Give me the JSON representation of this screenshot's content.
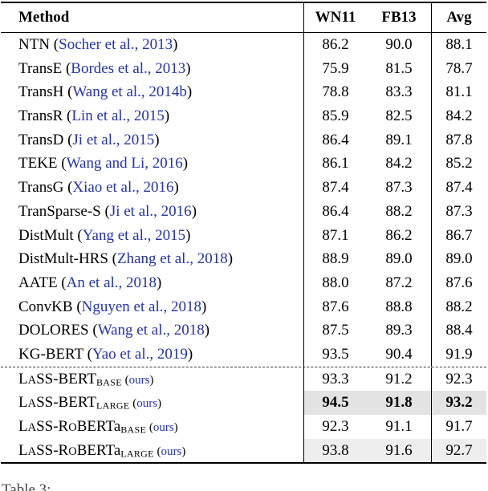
{
  "page": {
    "background": "#ffffff"
  },
  "colors": {
    "link_blue": "#2433aa",
    "highlight_dark": "#e3e3e3",
    "highlight_light": "#eeeeee",
    "rule_black": "#000000"
  },
  "caption": {
    "fragment": "Table 3:"
  },
  "table": {
    "headers": {
      "method": "Method",
      "wn11": "WN11",
      "fb13": "FB13",
      "avg": "Avg"
    },
    "rows": [
      {
        "parts": [
          {
            "t": "NTN ("
          },
          {
            "t": "Socher et al., 2013",
            "s": "link"
          },
          {
            "t": ")"
          }
        ],
        "values": [
          "86.2",
          "90.0",
          "88.1"
        ],
        "bold": false,
        "highlight": "",
        "dashed_before": false
      },
      {
        "parts": [
          {
            "t": "TransE ("
          },
          {
            "t": "Bordes et al., 2013",
            "s": "link"
          },
          {
            "t": ")"
          }
        ],
        "values": [
          "75.9",
          "81.5",
          "78.7"
        ],
        "bold": false,
        "highlight": "",
        "dashed_before": false
      },
      {
        "parts": [
          {
            "t": "TransH ("
          },
          {
            "t": "Wang et al., 2014b",
            "s": "link"
          },
          {
            "t": ")"
          }
        ],
        "values": [
          "78.8",
          "83.3",
          "81.1"
        ],
        "bold": false,
        "highlight": "",
        "dashed_before": false
      },
      {
        "parts": [
          {
            "t": "TransR ("
          },
          {
            "t": "Lin et al., 2015",
            "s": "link"
          },
          {
            "t": ")"
          }
        ],
        "values": [
          "85.9",
          "82.5",
          "84.2"
        ],
        "bold": false,
        "highlight": "",
        "dashed_before": false
      },
      {
        "parts": [
          {
            "t": "TransD ("
          },
          {
            "t": "Ji et al., 2015",
            "s": "link"
          },
          {
            "t": ")"
          }
        ],
        "values": [
          "86.4",
          "89.1",
          "87.8"
        ],
        "bold": false,
        "highlight": "",
        "dashed_before": false
      },
      {
        "parts": [
          {
            "t": "TEKE ("
          },
          {
            "t": "Wang and Li, 2016",
            "s": "link"
          },
          {
            "t": ")"
          }
        ],
        "values": [
          "86.1",
          "84.2",
          "85.2"
        ],
        "bold": false,
        "highlight": "",
        "dashed_before": false
      },
      {
        "parts": [
          {
            "t": "TransG ("
          },
          {
            "t": "Xiao et al., 2016",
            "s": "link"
          },
          {
            "t": ")"
          }
        ],
        "values": [
          "87.4",
          "87.3",
          "87.4"
        ],
        "bold": false,
        "highlight": "",
        "dashed_before": false
      },
      {
        "parts": [
          {
            "t": "TranSparse-S ("
          },
          {
            "t": "Ji et al., 2016",
            "s": "link"
          },
          {
            "t": ")"
          }
        ],
        "values": [
          "86.4",
          "88.2",
          "87.3"
        ],
        "bold": false,
        "highlight": "",
        "dashed_before": false
      },
      {
        "parts": [
          {
            "t": "DistMult ("
          },
          {
            "t": "Yang et al., 2015",
            "s": "link"
          },
          {
            "t": ")"
          }
        ],
        "values": [
          "87.1",
          "86.2",
          "86.7"
        ],
        "bold": false,
        "highlight": "",
        "dashed_before": false
      },
      {
        "parts": [
          {
            "t": "DistMult-HRS ("
          },
          {
            "t": "Zhang et al., 2018",
            "s": "link"
          },
          {
            "t": ")"
          }
        ],
        "values": [
          "88.9",
          "89.0",
          "89.0"
        ],
        "bold": false,
        "highlight": "",
        "dashed_before": false
      },
      {
        "parts": [
          {
            "t": "AATE ("
          },
          {
            "t": "An et al., 2018",
            "s": "link"
          },
          {
            "t": ")"
          }
        ],
        "values": [
          "88.0",
          "87.2",
          "87.6"
        ],
        "bold": false,
        "highlight": "",
        "dashed_before": false
      },
      {
        "parts": [
          {
            "t": "ConvKB ("
          },
          {
            "t": "Nguyen et al., 2018",
            "s": "link"
          },
          {
            "t": ")"
          }
        ],
        "values": [
          "87.6",
          "88.8",
          "88.2"
        ],
        "bold": false,
        "highlight": "",
        "dashed_before": false
      },
      {
        "parts": [
          {
            "t": "DOLORES ("
          },
          {
            "t": "Wang et al., 2018",
            "s": "link"
          },
          {
            "t": ")"
          }
        ],
        "values": [
          "87.5",
          "89.3",
          "88.4"
        ],
        "bold": false,
        "highlight": "",
        "dashed_before": false
      },
      {
        "parts": [
          {
            "t": "KG-BERT ("
          },
          {
            "t": "Yao et al., 2019",
            "s": "link"
          },
          {
            "t": ")"
          }
        ],
        "values": [
          "93.5",
          "90.4",
          "91.9"
        ],
        "bold": false,
        "highlight": "",
        "dashed_before": false
      },
      {
        "parts": [
          {
            "t": "L"
          },
          {
            "t": "A",
            "s": "sc"
          },
          {
            "t": "SS-BERT"
          },
          {
            "t": "BASE",
            "s": "sub"
          },
          {
            "t": " (",
            "s": "small"
          },
          {
            "t": "ours",
            "s": "link-small"
          },
          {
            "t": ")",
            "s": "small"
          }
        ],
        "values": [
          "93.3",
          "91.2",
          "92.3"
        ],
        "bold": false,
        "highlight": "",
        "dashed_before": true
      },
      {
        "parts": [
          {
            "t": "L"
          },
          {
            "t": "A",
            "s": "sc"
          },
          {
            "t": "SS-BERT"
          },
          {
            "t": "LARGE",
            "s": "sub"
          },
          {
            "t": " (",
            "s": "small"
          },
          {
            "t": "ours",
            "s": "link-small"
          },
          {
            "t": ")",
            "s": "small"
          }
        ],
        "values": [
          "94.5",
          "91.8",
          "93.2"
        ],
        "bold": true,
        "highlight": "dark",
        "dashed_before": false
      },
      {
        "parts": [
          {
            "t": "L"
          },
          {
            "t": "A",
            "s": "sc"
          },
          {
            "t": "SS-R"
          },
          {
            "t": "O",
            "s": "sc"
          },
          {
            "t": "BERT"
          },
          {
            "t": "a"
          },
          {
            "t": "BASE",
            "s": "sub"
          },
          {
            "t": " (",
            "s": "small"
          },
          {
            "t": "ours",
            "s": "link-small"
          },
          {
            "t": ")",
            "s": "small"
          }
        ],
        "values": [
          "92.3",
          "91.1",
          "91.7"
        ],
        "bold": false,
        "highlight": "",
        "dashed_before": false
      },
      {
        "parts": [
          {
            "t": "L"
          },
          {
            "t": "A",
            "s": "sc"
          },
          {
            "t": "SS-R"
          },
          {
            "t": "O",
            "s": "sc"
          },
          {
            "t": "BERT"
          },
          {
            "t": "a"
          },
          {
            "t": "LARGE",
            "s": "sub"
          },
          {
            "t": " (",
            "s": "small"
          },
          {
            "t": "ours",
            "s": "link-small"
          },
          {
            "t": ")",
            "s": "small"
          }
        ],
        "values": [
          "93.8",
          "91.6",
          "92.7"
        ],
        "bold": false,
        "highlight": "light",
        "dashed_before": false
      }
    ]
  }
}
